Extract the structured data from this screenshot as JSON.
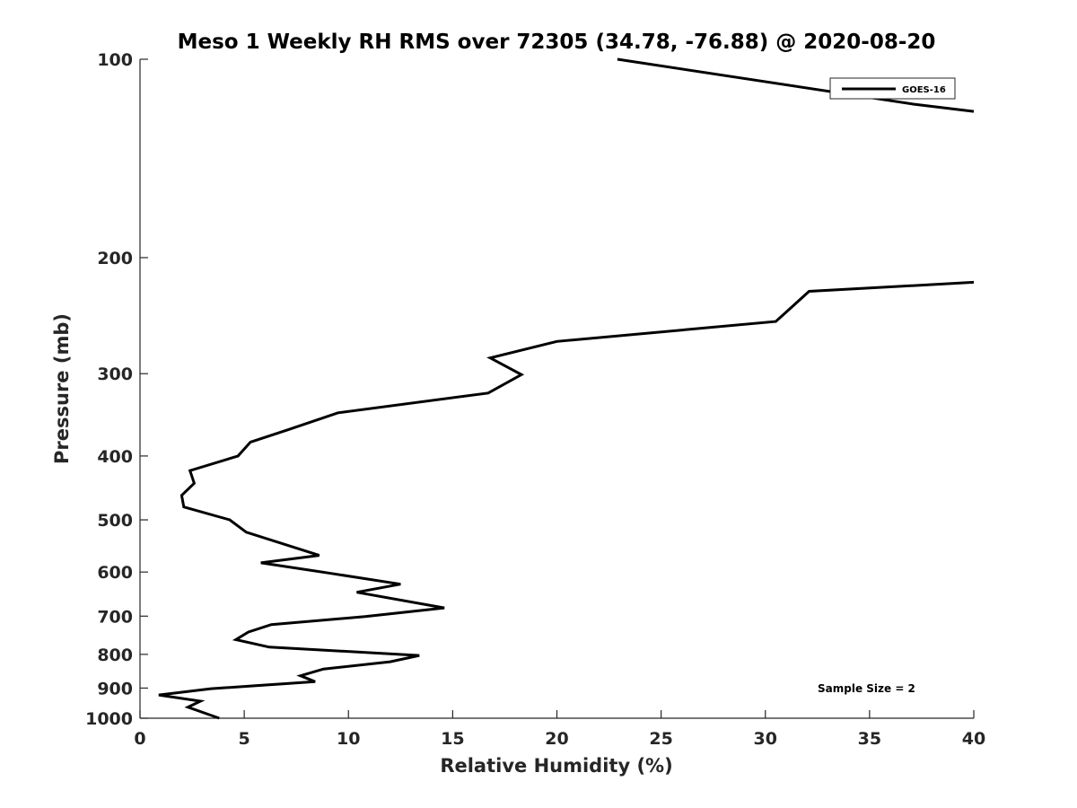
{
  "chart_data": {
    "type": "line",
    "title": "Meso 1 Weekly RH RMS over 72305 (34.78, -76.88) @ 2020-08-20",
    "xlabel": "Relative Humidity (%)",
    "ylabel": "Pressure (mb)",
    "xlim": [
      0,
      40
    ],
    "ylim": [
      100,
      1000
    ],
    "yscale": "log",
    "y_reversed": true,
    "x_ticks": [
      0,
      5,
      10,
      15,
      20,
      25,
      30,
      35,
      40
    ],
    "y_ticks": [
      100,
      200,
      300,
      400,
      500,
      600,
      700,
      800,
      900,
      1000
    ],
    "grid": false,
    "legend_position": "top-right",
    "annotation": "Sample Size = 2",
    "series": [
      {
        "name": "GOES-16",
        "color": "#000000",
        "segments": [
          [
            {
              "x": 22.9,
              "y": 100
            },
            {
              "x": 37.1,
              "y": 117
            },
            {
              "x": 40.0,
              "y": 120
            }
          ],
          [
            {
              "x": 40.0,
              "y": 218
            },
            {
              "x": 32.1,
              "y": 225
            },
            {
              "x": 30.5,
              "y": 250
            },
            {
              "x": 20.0,
              "y": 268
            },
            {
              "x": 16.8,
              "y": 284
            },
            {
              "x": 18.3,
              "y": 301
            },
            {
              "x": 16.7,
              "y": 321
            },
            {
              "x": 9.5,
              "y": 344
            },
            {
              "x": 7.1,
              "y": 365
            },
            {
              "x": 5.3,
              "y": 381
            },
            {
              "x": 4.7,
              "y": 400
            },
            {
              "x": 2.4,
              "y": 421
            },
            {
              "x": 2.6,
              "y": 440
            },
            {
              "x": 2.0,
              "y": 459
            },
            {
              "x": 2.1,
              "y": 478
            },
            {
              "x": 4.3,
              "y": 500
            },
            {
              "x": 5.1,
              "y": 522
            },
            {
              "x": 8.6,
              "y": 566
            },
            {
              "x": 5.8,
              "y": 581
            },
            {
              "x": 9.2,
              "y": 603
            },
            {
              "x": 12.5,
              "y": 626
            },
            {
              "x": 10.4,
              "y": 644
            },
            {
              "x": 14.6,
              "y": 680
            },
            {
              "x": 10.8,
              "y": 701
            },
            {
              "x": 6.3,
              "y": 721
            },
            {
              "x": 5.2,
              "y": 740
            },
            {
              "x": 4.6,
              "y": 760
            },
            {
              "x": 6.2,
              "y": 780
            },
            {
              "x": 13.4,
              "y": 803
            },
            {
              "x": 12.0,
              "y": 821
            },
            {
              "x": 8.8,
              "y": 842
            },
            {
              "x": 7.7,
              "y": 862
            },
            {
              "x": 8.4,
              "y": 880
            },
            {
              "x": 3.4,
              "y": 902
            },
            {
              "x": 0.9,
              "y": 922
            },
            {
              "x": 2.9,
              "y": 942
            },
            {
              "x": 2.3,
              "y": 962
            },
            {
              "x": 3.8,
              "y": 1000
            }
          ]
        ]
      }
    ]
  }
}
